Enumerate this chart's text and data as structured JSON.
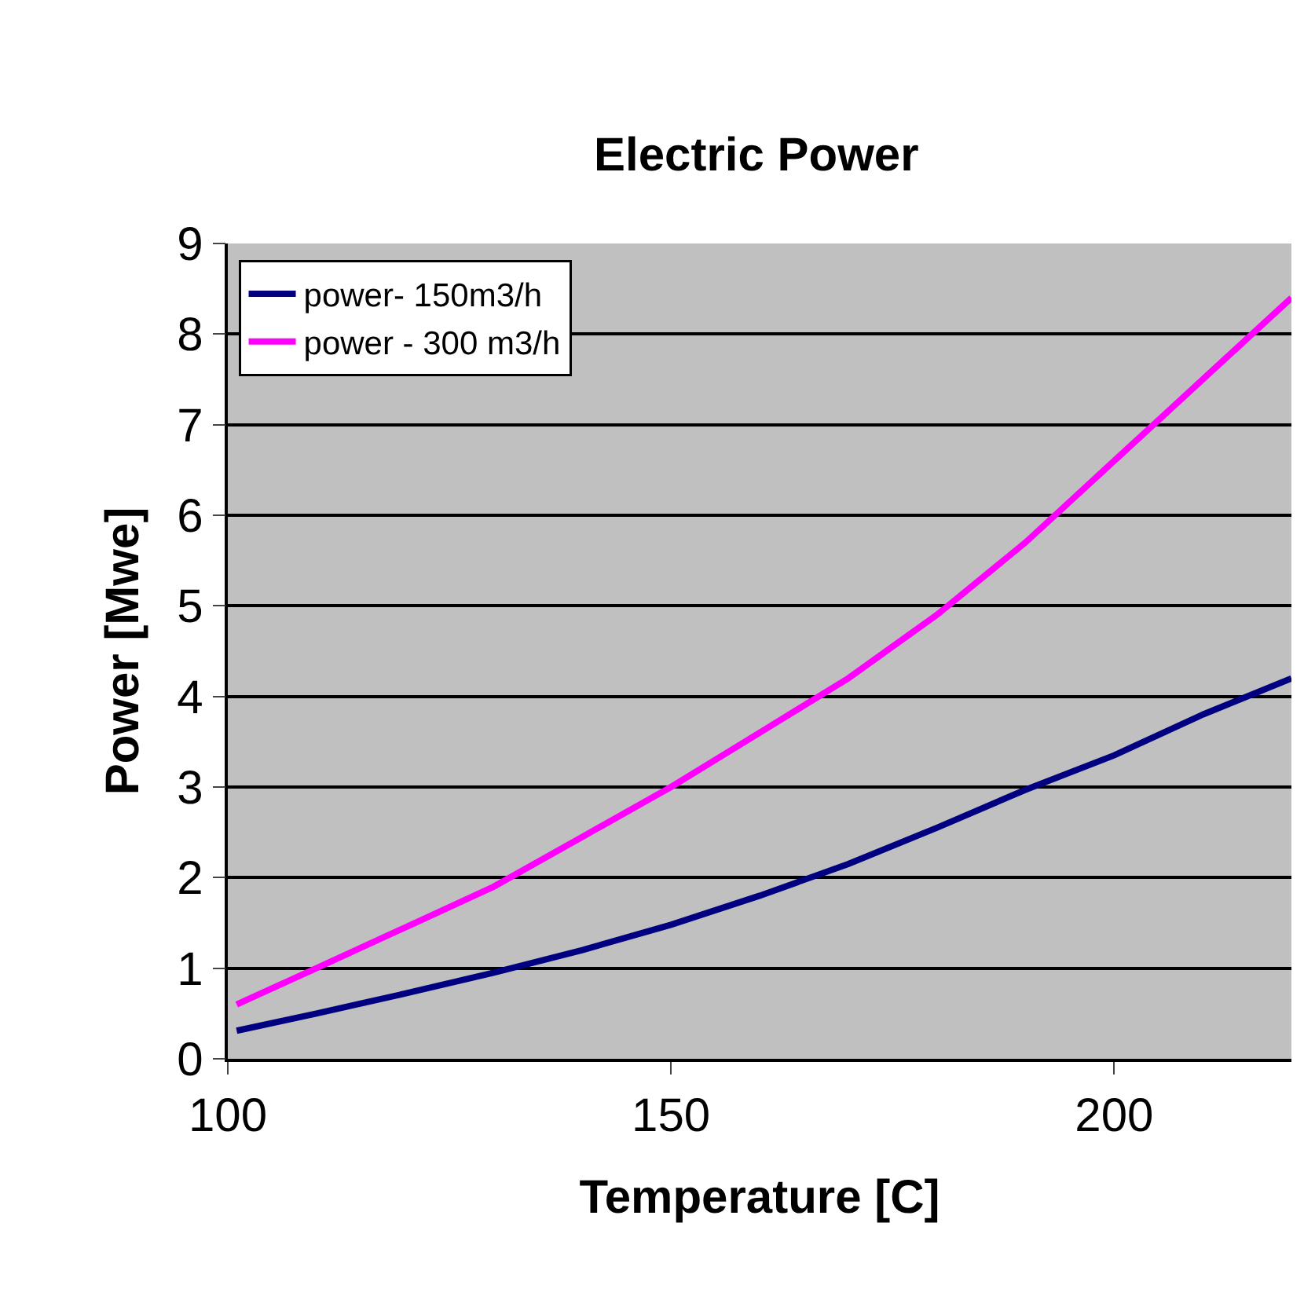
{
  "chart_data": {
    "type": "line",
    "title": "Electric Power",
    "xlabel": "Temperature [C]",
    "ylabel": "Power [Mwe]",
    "x": [
      101,
      110,
      120,
      130,
      140,
      150,
      160,
      170,
      180,
      190,
      200,
      210,
      220
    ],
    "series": [
      {
        "name": "power- 150m3/h",
        "color": "#000080",
        "values": [
          0.31,
          0.5,
          0.72,
          0.95,
          1.2,
          1.48,
          1.8,
          2.15,
          2.55,
          2.97,
          3.35,
          3.8,
          4.2
        ]
      },
      {
        "name": "power - 300 m3/h",
        "color": "#ff00ff",
        "values": [
          0.6,
          1.0,
          1.45,
          1.9,
          2.45,
          3.0,
          3.6,
          4.2,
          4.9,
          5.7,
          6.6,
          7.5,
          8.4
        ]
      }
    ],
    "xlim": [
      100,
      220
    ],
    "xticks": [
      100,
      150,
      200
    ],
    "ylim": [
      0,
      9
    ],
    "yticks": [
      0,
      1,
      2,
      3,
      4,
      5,
      6,
      7,
      8,
      9
    ],
    "grid": "y",
    "legend": "top left",
    "marker": "none",
    "line_style": "solid"
  }
}
